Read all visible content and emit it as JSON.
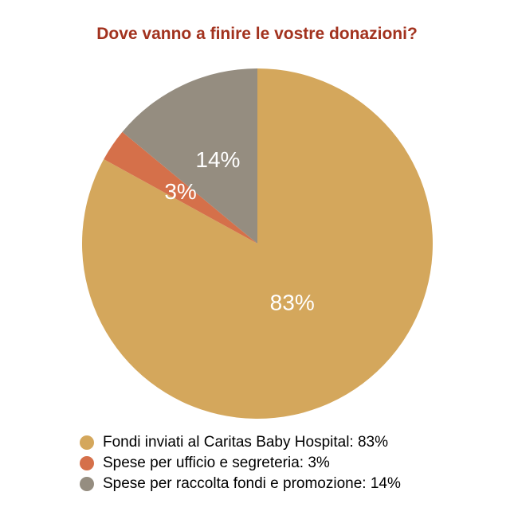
{
  "chart_data": {
    "type": "pie",
    "title": "Dove vanno a finire le vostre donazioni?",
    "title_color": "#a2321e",
    "slices": [
      {
        "label": "Fondi inviati al Caritas Baby Hospital: 83%",
        "value": 83,
        "data_label": "83%",
        "color": "#d4a75c"
      },
      {
        "label": "Spese per ufficio e segreteria: 3%",
        "value": 3,
        "data_label": "3%",
        "color": "#d5704a"
      },
      {
        "label": "Spese per raccolta fondi e promozione: 14%",
        "value": 14,
        "data_label": "14%",
        "color": "#958d80"
      }
    ],
    "start": "top",
    "direction": "clockwise",
    "legend_position": "bottom"
  }
}
